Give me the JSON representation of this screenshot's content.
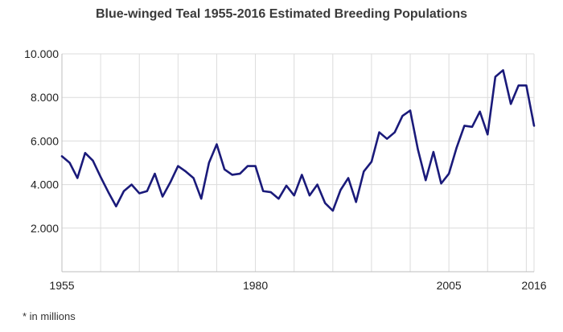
{
  "chart_data": {
    "type": "line",
    "title": "Blue-winged Teal 1955-2016 Estimated Breeding Populations",
    "footnote": "* in millions",
    "xlabel": "",
    "ylabel": "",
    "xlim": [
      1955,
      2016
    ],
    "ylim": [
      0,
      10
    ],
    "x_ticks": [
      {
        "value": 1955,
        "label": "1955"
      },
      {
        "value": 1980,
        "label": "1980"
      },
      {
        "value": 2005,
        "label": "2005"
      },
      {
        "value": 2016,
        "label": "2016"
      }
    ],
    "y_ticks": [
      {
        "value": 2,
        "label": "2.000"
      },
      {
        "value": 4,
        "label": "4.000"
      },
      {
        "value": 6,
        "label": "6.000"
      },
      {
        "value": 8,
        "label": "8.000"
      },
      {
        "value": 10,
        "label": "10.000"
      }
    ],
    "grid": true,
    "line_color": "#1a1a7a",
    "x": [
      1955,
      1956,
      1957,
      1958,
      1959,
      1960,
      1961,
      1962,
      1963,
      1964,
      1965,
      1966,
      1967,
      1968,
      1969,
      1970,
      1971,
      1972,
      1973,
      1974,
      1975,
      1976,
      1977,
      1978,
      1979,
      1980,
      1981,
      1982,
      1983,
      1984,
      1985,
      1986,
      1987,
      1988,
      1989,
      1990,
      1991,
      1992,
      1993,
      1994,
      1995,
      1996,
      1997,
      1998,
      1999,
      2000,
      2001,
      2002,
      2003,
      2004,
      2005,
      2006,
      2007,
      2008,
      2009,
      2010,
      2011,
      2012,
      2013,
      2014,
      2015,
      2016
    ],
    "series": [
      {
        "values": [
          5.3,
          5.0,
          4.3,
          5.45,
          5.1,
          4.35,
          3.65,
          3.0,
          3.7,
          4.0,
          3.6,
          3.7,
          4.5,
          3.45,
          4.1,
          4.85,
          4.6,
          4.3,
          3.35,
          5.0,
          5.85,
          4.7,
          4.45,
          4.5,
          4.85,
          4.85,
          3.7,
          3.65,
          3.35,
          3.95,
          3.5,
          4.45,
          3.5,
          4.0,
          3.15,
          2.8,
          3.75,
          4.3,
          3.2,
          4.6,
          5.05,
          6.4,
          6.1,
          6.4,
          7.15,
          7.4,
          5.6,
          4.2,
          5.5,
          4.05,
          4.5,
          5.7,
          6.7,
          6.65,
          7.35,
          6.3,
          8.95,
          9.25,
          7.7,
          8.55,
          8.55,
          6.7
        ]
      }
    ]
  }
}
